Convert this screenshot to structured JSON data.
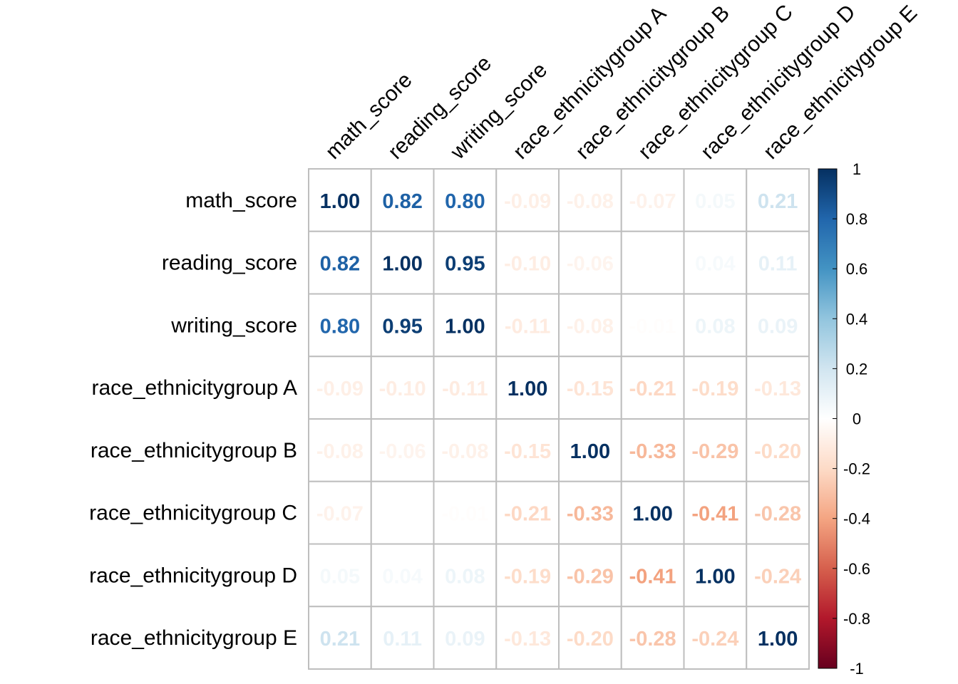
{
  "chart_data": {
    "type": "heatmap",
    "variables": [
      "math_score",
      "reading_score",
      "writing_score",
      "race_ethnicitygroup A",
      "race_ethnicitygroup B",
      "race_ethnicitygroup C",
      "race_ethnicitygroup D",
      "race_ethnicitygroup E"
    ],
    "matrix": [
      [
        1.0,
        0.82,
        0.8,
        -0.09,
        -0.08,
        -0.07,
        0.05,
        0.21
      ],
      [
        0.82,
        1.0,
        0.95,
        -0.1,
        -0.06,
        0.0,
        0.04,
        0.11
      ],
      [
        0.8,
        0.95,
        1.0,
        -0.11,
        -0.08,
        -0.01,
        0.08,
        0.09
      ],
      [
        -0.09,
        -0.1,
        -0.11,
        1.0,
        -0.15,
        -0.21,
        -0.19,
        -0.13
      ],
      [
        -0.08,
        -0.06,
        -0.08,
        -0.15,
        1.0,
        -0.33,
        -0.29,
        -0.2
      ],
      [
        -0.07,
        0.0,
        -0.01,
        -0.21,
        -0.33,
        1.0,
        -0.41,
        -0.28
      ],
      [
        0.05,
        0.04,
        0.08,
        -0.19,
        -0.29,
        -0.41,
        1.0,
        -0.24
      ],
      [
        0.21,
        0.11,
        0.09,
        -0.13,
        -0.2,
        -0.28,
        -0.24,
        1.0
      ]
    ],
    "value_range": [
      -1,
      1
    ],
    "colorbar": {
      "ticks": [
        "1",
        "0.8",
        "0.6",
        "0.4",
        "0.2",
        "0",
        "-0.2",
        "-0.4",
        "-0.6",
        "-0.8",
        "-1"
      ],
      "placement": "right"
    },
    "colors": {
      "stops": [
        "#67001F",
        "#B2182B",
        "#D6604D",
        "#F4A582",
        "#FDDBC7",
        "#FFFFFF",
        "#D1E5F0",
        "#92C5DE",
        "#4393C3",
        "#2166AC",
        "#053061"
      ],
      "grid": "#BEBEBE"
    },
    "grid": true
  }
}
